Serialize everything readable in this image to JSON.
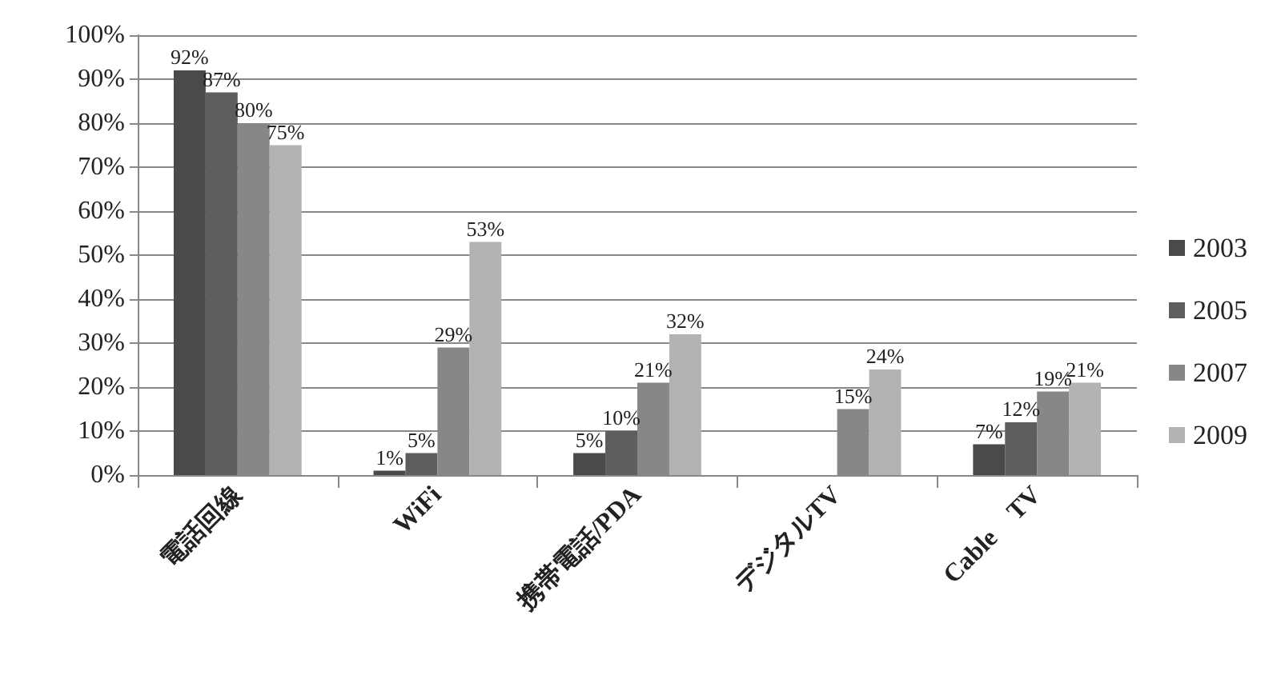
{
  "chart_data": {
    "type": "bar",
    "categories": [
      "電話回線",
      "WiFi",
      "携帯電話/PDA",
      "デジタルTV",
      "Cable　TV"
    ],
    "series": [
      {
        "name": "2003",
        "color": "#4a4a4a",
        "values": [
          92,
          1,
          5,
          null,
          7
        ],
        "value_labels": [
          "92%",
          "1%",
          "5%",
          null,
          "7%"
        ]
      },
      {
        "name": "2005",
        "color": "#5e5e5e",
        "values": [
          87,
          5,
          10,
          null,
          12
        ],
        "value_labels": [
          "87%",
          "5%",
          "10%",
          null,
          "12%"
        ]
      },
      {
        "name": "2007",
        "color": "#878787",
        "values": [
          80,
          29,
          21,
          15,
          19
        ],
        "value_labels": [
          "80%",
          "29%",
          "21%",
          "15%",
          "19%"
        ]
      },
      {
        "name": "2009",
        "color": "#b3b3b3",
        "values": [
          75,
          53,
          32,
          24,
          21
        ],
        "value_labels": [
          "75%",
          "53%",
          "32%",
          "24%",
          "21%"
        ]
      }
    ],
    "ylim": [
      0,
      100
    ],
    "yticks": [
      {
        "value": 0,
        "label": "0%"
      },
      {
        "value": 10,
        "label": "10%"
      },
      {
        "value": 20,
        "label": "20%"
      },
      {
        "value": 30,
        "label": "30%"
      },
      {
        "value": 40,
        "label": "40%"
      },
      {
        "value": 50,
        "label": "50%"
      },
      {
        "value": 60,
        "label": "60%"
      },
      {
        "value": 70,
        "label": "70%"
      },
      {
        "value": 80,
        "label": "80%"
      },
      {
        "value": 90,
        "label": "90%"
      },
      {
        "value": 100,
        "label": "100%"
      }
    ],
    "grid": "y",
    "legend": "right"
  }
}
